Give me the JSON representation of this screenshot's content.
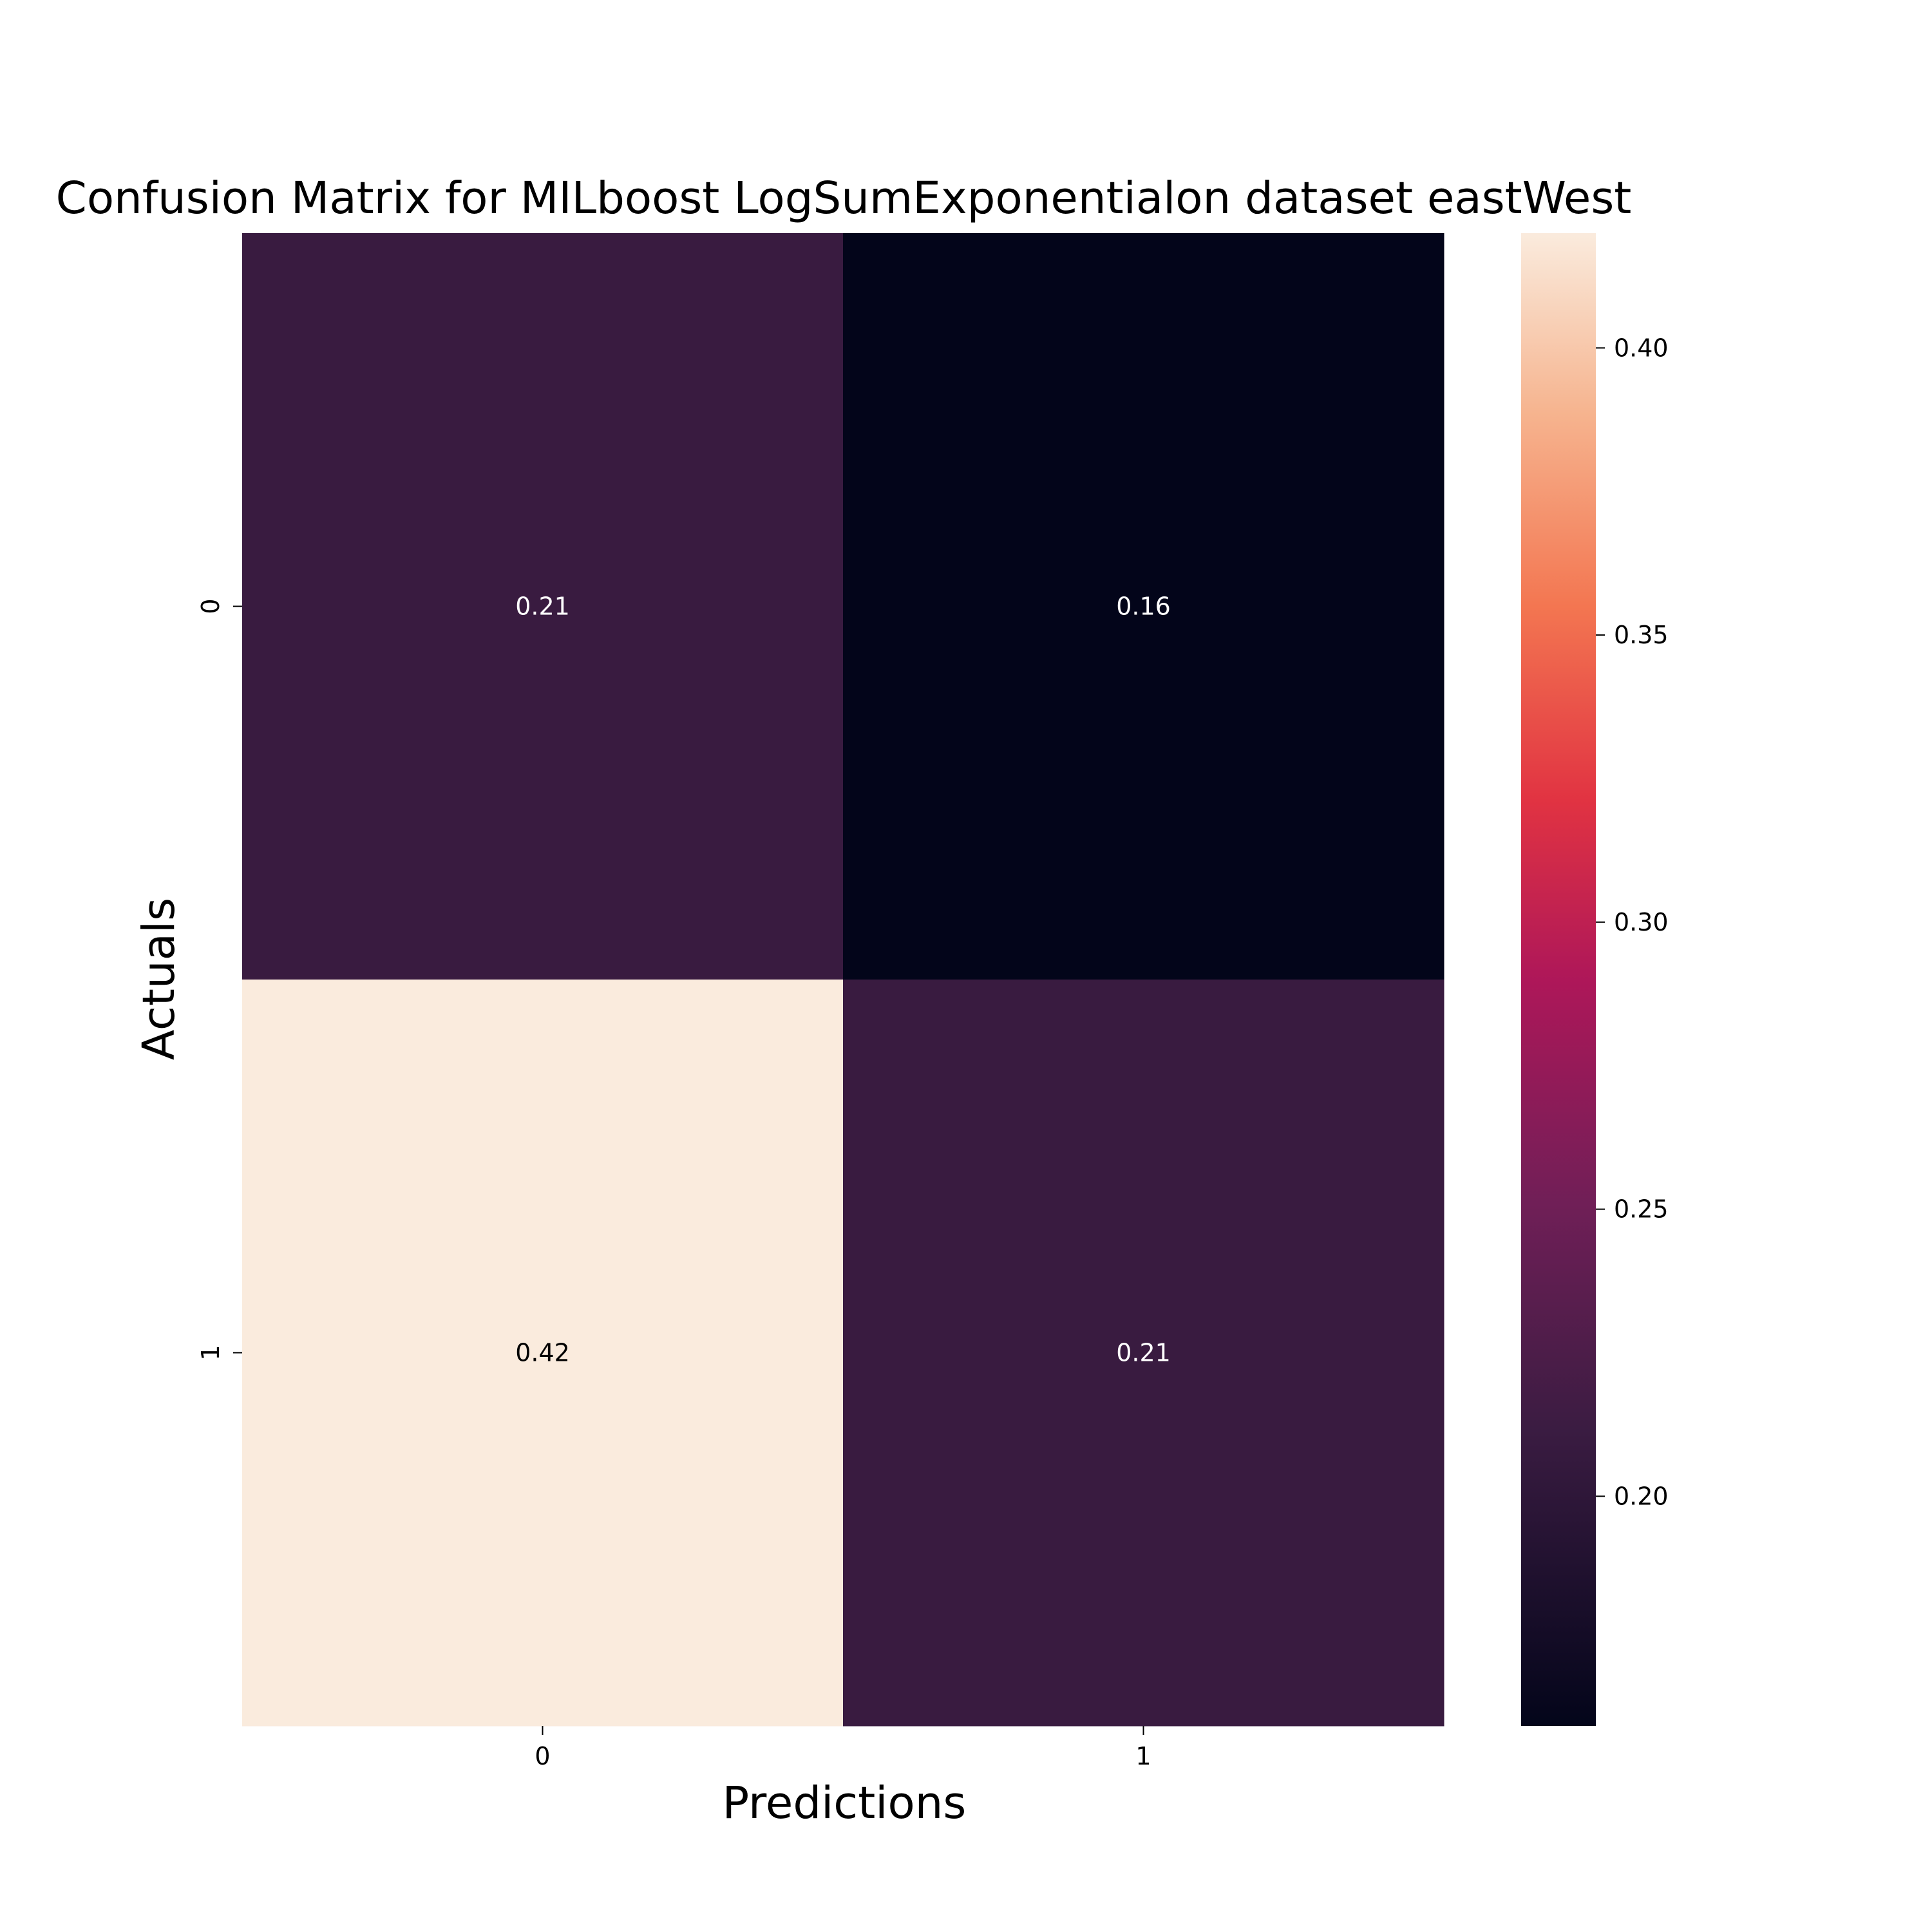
{
  "chart_data": {
    "type": "heatmap",
    "title": "Confusion Matrix for MILboost LogSumExponentialon dataset eastWest",
    "xlabel": "Predictions",
    "ylabel": "Actuals",
    "x_categories": [
      "0",
      "1"
    ],
    "y_categories": [
      "0",
      "1"
    ],
    "values": [
      [
        0.21,
        0.16
      ],
      [
        0.42,
        0.21
      ]
    ],
    "cell_labels": [
      [
        "0.21",
        "0.16"
      ],
      [
        "0.42",
        "0.21"
      ]
    ],
    "colorbar": {
      "colormap": "rocket",
      "range": [
        0.16,
        0.42
      ],
      "ticks": [
        0.2,
        0.25,
        0.3,
        0.35,
        0.4
      ],
      "tick_labels": [
        "0.20",
        "0.25",
        "0.30",
        "0.35",
        "0.40"
      ]
    },
    "colors": {
      "cmap_stops": [
        [
          0.0,
          "#03051a"
        ],
        [
          0.2,
          "#3b1c42"
        ],
        [
          0.35,
          "#701f57"
        ],
        [
          0.5,
          "#ae1759"
        ],
        [
          0.62,
          "#e13342"
        ],
        [
          0.75,
          "#f37651"
        ],
        [
          0.88,
          "#f6b48f"
        ],
        [
          1.0,
          "#faebdd"
        ]
      ],
      "light_label": "#ffffff",
      "dark_label": "#000000"
    }
  }
}
